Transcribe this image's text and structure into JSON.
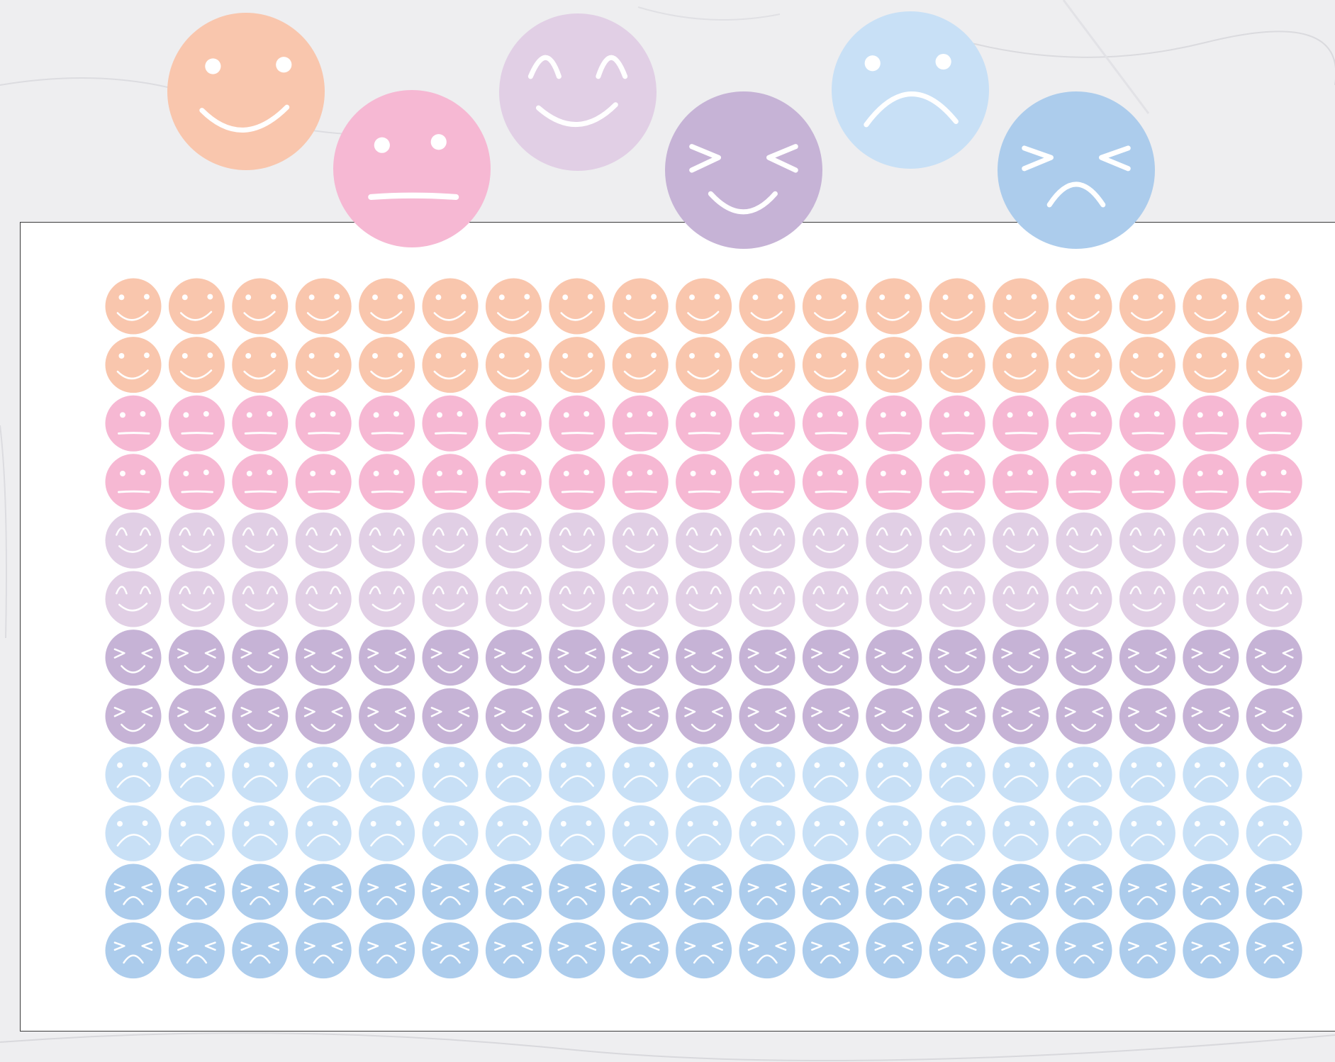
{
  "colors": {
    "background": "#ececee",
    "sheet": "#ffffff",
    "sheet_border": "#3a3a3a"
  },
  "preview_stickers": [
    {
      "name": "smile",
      "color": "#f9c6ad"
    },
    {
      "name": "neutral",
      "color": "#f6b8d3"
    },
    {
      "name": "happy",
      "color": "#e1cfe5"
    },
    {
      "name": "laugh",
      "color": "#c6b3d6"
    },
    {
      "name": "sad",
      "color": "#c8e0f6"
    },
    {
      "name": "upset",
      "color": "#acccec"
    }
  ],
  "sheet": {
    "columns": 19,
    "rows": [
      "smile",
      "smile",
      "neutral",
      "neutral",
      "happy",
      "happy",
      "laugh",
      "laugh",
      "sad",
      "sad",
      "upset",
      "upset"
    ]
  }
}
